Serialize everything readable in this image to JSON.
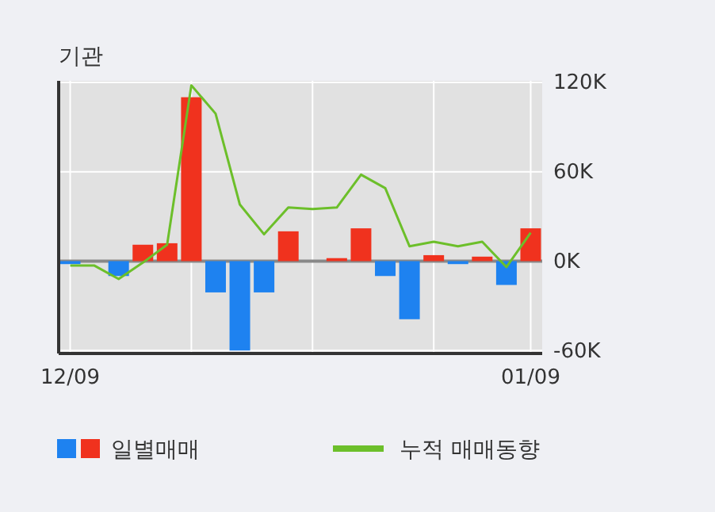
{
  "chart_data": {
    "type": "bar",
    "title": "기관",
    "categories": [
      "12/09",
      null,
      null,
      null,
      null,
      null,
      null,
      null,
      null,
      null,
      null,
      null,
      null,
      null,
      null,
      null,
      null,
      null,
      null,
      "01/09"
    ],
    "series": [
      {
        "name": "일별매매",
        "colors": [
          "#1e82f0",
          "#1e82f0",
          "#1e82f0",
          "#f0321e",
          "#f0321e",
          "#f0321e",
          "#1e82f0",
          "#1e82f0",
          "#1e82f0",
          "#f0321e",
          "#f0321e",
          "#f0321e",
          "#f0321e",
          "#1e82f0",
          "#1e82f0",
          "#f0321e",
          "#1e82f0",
          "#f0321e",
          "#1e82f0",
          "#f0321e"
        ],
        "values": [
          -2000,
          0,
          -10000,
          11000,
          12000,
          110000,
          -21000,
          -60000,
          -21000,
          20000,
          0,
          2000,
          22000,
          -10000,
          -39000,
          4000,
          -2000,
          3000,
          -16000,
          22000
        ]
      },
      {
        "name": "누적 매매동향",
        "type": "line",
        "color": "#6cbf2a",
        "values": [
          -3000,
          -3000,
          -12000,
          -1000,
          11000,
          118000,
          99000,
          38000,
          18000,
          36000,
          35000,
          36000,
          58000,
          49000,
          10000,
          13000,
          10000,
          13000,
          -4000,
          19000
        ]
      }
    ],
    "ylim": [
      -62000,
      121000
    ],
    "yticks": [
      {
        "value": -60000,
        "label": "-60K"
      },
      {
        "value": 0,
        "label": "0K"
      },
      {
        "value": 60000,
        "label": "60K"
      },
      {
        "value": 120000,
        "label": "120K"
      }
    ],
    "grid": true,
    "legend": "bottom"
  }
}
